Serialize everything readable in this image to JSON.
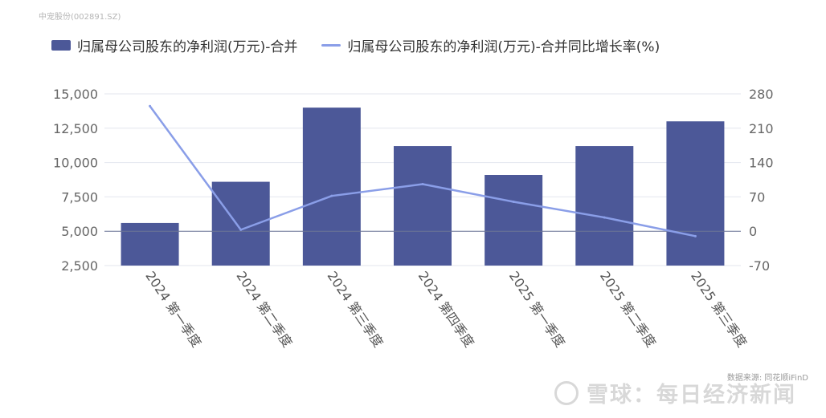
{
  "header": {
    "stock": "中宠股份(002891.SZ)"
  },
  "footer": {
    "source": "数据来源: 同花顺iFinD",
    "watermark": "雪球：每日经济新闻"
  },
  "colors": {
    "bar": "#4c5898",
    "line": "#8a9ee8",
    "grid": "#e3e6ee",
    "zero": "#6c7595"
  },
  "chart_data": {
    "type": "bar",
    "categories": [
      "2024 第一季度",
      "2024 第二季度",
      "2024 第三季度",
      "2024 第四季度",
      "2025 第一季度",
      "2025 第二季度",
      "2025 第三季度"
    ],
    "series": [
      {
        "name": "归属母公司股东的净利润(万元)-合并",
        "type": "bar",
        "axis": "left",
        "values": [
          5600,
          8600,
          14000,
          11200,
          9100,
          11200,
          13000
        ]
      },
      {
        "name": "归属母公司股东的净利润(万元)-合并同比增长率(%)",
        "type": "line",
        "axis": "right",
        "values": [
          255,
          3,
          72,
          96,
          60,
          28,
          -10
        ]
      }
    ],
    "yleft": {
      "ticks": [
        2500,
        5000,
        7500,
        10000,
        12500,
        15000
      ],
      "tick_labels": [
        "2,500",
        "5,000",
        "7,500",
        "10,000",
        "12,500",
        "15,000"
      ],
      "range": [
        2500,
        15000
      ]
    },
    "yright": {
      "ticks": [
        -70,
        0,
        70,
        140,
        210,
        280
      ],
      "tick_labels": [
        "-70",
        "0",
        "70",
        "140",
        "210",
        "280"
      ],
      "range": [
        -70,
        280
      ]
    },
    "grid": true,
    "legend_position": "top-left"
  }
}
